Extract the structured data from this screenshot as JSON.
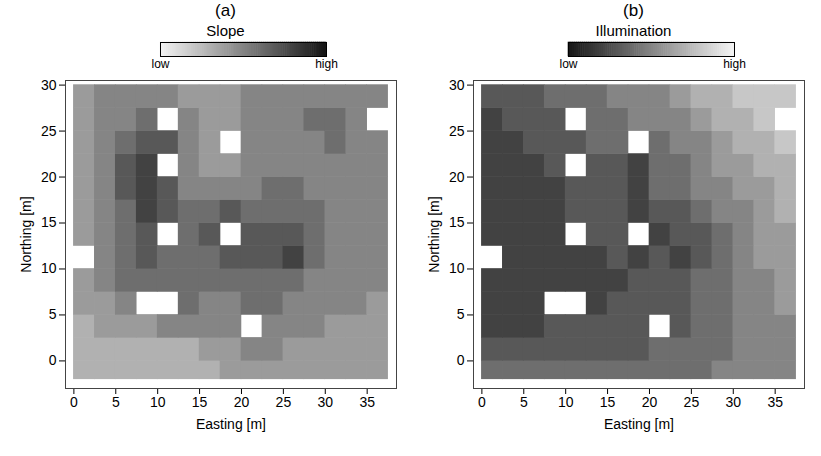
{
  "chart_data": [
    {
      "type": "heatmap",
      "title": "(a)",
      "x_label": "Easting [m]",
      "y_label": "Northing [m]",
      "xlim": [
        -1,
        38.5
      ],
      "ylim": [
        -3,
        30.5
      ],
      "xticks": [
        0,
        5,
        10,
        15,
        20,
        25,
        30,
        35
      ],
      "yticks": [
        0,
        5,
        10,
        15,
        20,
        25,
        30
      ],
      "x_edges": [
        0,
        2.5,
        5,
        7.5,
        10,
        12.5,
        15,
        17.5,
        20,
        22.5,
        25,
        27.5,
        30,
        32.5,
        35,
        37.5
      ],
      "y_edges": [
        -2,
        0,
        2.5,
        5,
        7.5,
        10,
        12.5,
        15,
        17.5,
        20,
        22.5,
        25,
        27.5,
        30
      ],
      "cells": [
        [
          3,
          3,
          3,
          3,
          3,
          3,
          3,
          4,
          4,
          4,
          4,
          4,
          4,
          4,
          4
        ],
        [
          3,
          3,
          3,
          3,
          3,
          3,
          4,
          4,
          5,
          5,
          4,
          4,
          4,
          4,
          4
        ],
        [
          3,
          4,
          4,
          4,
          5,
          5,
          5,
          5,
          null,
          5,
          5,
          5,
          4,
          4,
          4
        ],
        [
          4,
          4,
          5,
          null,
          null,
          6,
          5,
          5,
          6,
          6,
          5,
          5,
          5,
          5,
          4
        ],
        [
          4,
          5,
          6,
          6,
          6,
          6,
          6,
          6,
          6,
          6,
          6,
          5,
          5,
          5,
          5
        ],
        [
          null,
          5,
          6,
          7,
          6,
          6,
          6,
          7,
          7,
          7,
          8,
          6,
          5,
          5,
          5
        ],
        [
          4,
          5,
          6,
          7,
          null,
          6,
          7,
          null,
          7,
          7,
          7,
          6,
          5,
          5,
          5
        ],
        [
          4,
          5,
          6,
          8,
          7,
          6,
          6,
          7,
          6,
          6,
          6,
          6,
          5,
          5,
          5
        ],
        [
          4,
          5,
          7,
          8,
          7,
          5,
          5,
          5,
          5,
          6,
          6,
          5,
          5,
          5,
          5
        ],
        [
          4,
          5,
          7,
          8,
          null,
          5,
          4,
          4,
          5,
          5,
          5,
          5,
          5,
          5,
          5
        ],
        [
          4,
          5,
          6,
          7,
          7,
          5,
          4,
          null,
          5,
          5,
          5,
          5,
          6,
          5,
          5
        ],
        [
          4,
          5,
          5,
          6,
          null,
          5,
          4,
          4,
          5,
          5,
          5,
          6,
          6,
          5,
          null
        ],
        [
          4,
          5,
          5,
          5,
          5,
          4,
          4,
          4,
          5,
          5,
          5,
          5,
          5,
          5,
          5
        ]
      ],
      "colors": [
        "#f4f4f4",
        "#151515"
      ],
      "colorbar": {
        "label": "Slope",
        "range": [
          0,
          10
        ],
        "ticks": [
          {
            "value": 0,
            "label": "low"
          },
          {
            "value": 10,
            "label": "high"
          }
        ]
      }
    },
    {
      "type": "heatmap",
      "title": "(b)",
      "x_label": "Easting [m]",
      "y_label": "Northing [m]",
      "xlim": [
        -1,
        38.5
      ],
      "ylim": [
        -3,
        30.5
      ],
      "xticks": [
        0,
        5,
        10,
        15,
        20,
        25,
        30,
        35
      ],
      "yticks": [
        0,
        5,
        10,
        15,
        20,
        25,
        30
      ],
      "x_edges": [
        0,
        2.5,
        5,
        7.5,
        10,
        12.5,
        15,
        17.5,
        20,
        22.5,
        25,
        27.5,
        30,
        32.5,
        35,
        37.5
      ],
      "y_edges": [
        -2,
        0,
        2.5,
        5,
        7.5,
        10,
        12.5,
        15,
        17.5,
        20,
        22.5,
        25,
        27.5,
        30
      ],
      "cells": [
        [
          4,
          4,
          4,
          4,
          4,
          4,
          4,
          4,
          4,
          4,
          4,
          5,
          5,
          5,
          5
        ],
        [
          3,
          3,
          3,
          3,
          3,
          3,
          3,
          3,
          4,
          4,
          4,
          4,
          5,
          5,
          5
        ],
        [
          2,
          2,
          2,
          3,
          3,
          3,
          3,
          3,
          null,
          3,
          4,
          4,
          5,
          5,
          5
        ],
        [
          2,
          2,
          2,
          null,
          null,
          2,
          3,
          3,
          3,
          3,
          4,
          4,
          5,
          5,
          6
        ],
        [
          2,
          2,
          2,
          2,
          2,
          2,
          2,
          3,
          3,
          3,
          4,
          4,
          5,
          5,
          6
        ],
        [
          null,
          2,
          2,
          2,
          2,
          2,
          3,
          2,
          3,
          2,
          3,
          4,
          5,
          6,
          6
        ],
        [
          2,
          2,
          2,
          2,
          null,
          3,
          3,
          null,
          2,
          3,
          3,
          4,
          5,
          6,
          6
        ],
        [
          2,
          2,
          2,
          2,
          3,
          3,
          3,
          2,
          3,
          3,
          4,
          5,
          5,
          6,
          7
        ],
        [
          2,
          2,
          2,
          2,
          3,
          3,
          3,
          2,
          4,
          4,
          5,
          5,
          6,
          6,
          7
        ],
        [
          2,
          2,
          2,
          3,
          null,
          3,
          3,
          2,
          4,
          4,
          5,
          6,
          6,
          7,
          7
        ],
        [
          2,
          2,
          3,
          3,
          3,
          4,
          4,
          null,
          4,
          5,
          5,
          6,
          7,
          7,
          8
        ],
        [
          2,
          3,
          3,
          3,
          null,
          4,
          4,
          5,
          5,
          5,
          6,
          7,
          7,
          8,
          null
        ],
        [
          3,
          3,
          3,
          4,
          4,
          4,
          5,
          5,
          5,
          6,
          7,
          7,
          8,
          8,
          8
        ]
      ],
      "colors": [
        "#151515",
        "#f4f4f4"
      ],
      "colorbar": {
        "label": "Illumination",
        "range": [
          0,
          10
        ],
        "ticks": [
          {
            "value": 0,
            "label": "low"
          },
          {
            "value": 10,
            "label": "high"
          }
        ]
      }
    }
  ]
}
